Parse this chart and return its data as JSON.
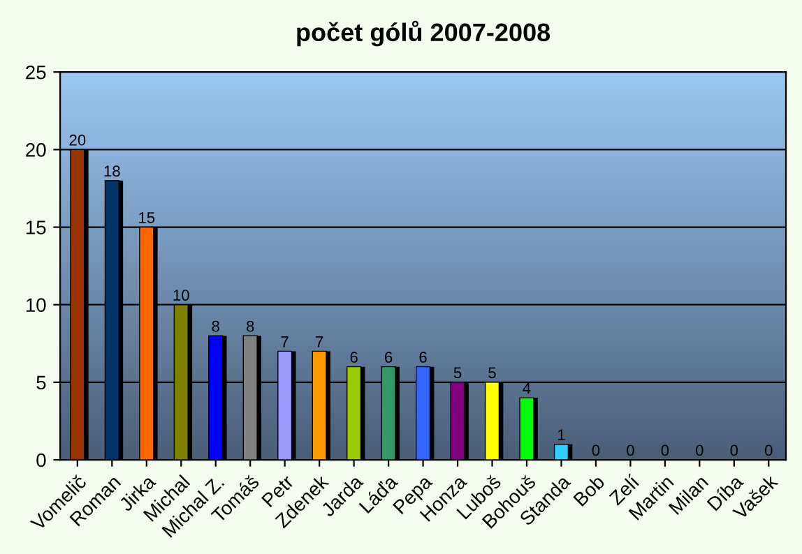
{
  "chart_data": {
    "type": "bar",
    "title": "počet gólů 2007-2008",
    "categories": [
      "Vomelič",
      "Roman",
      "Jirka",
      "Michal",
      "Michal Z.",
      "Tomáš",
      "Petr",
      "Zdenek",
      "Jarda",
      "Láďa",
      "Pepa",
      "Honza",
      "Luboš",
      "Bohouš",
      "Standa",
      "Bob",
      "Zelí",
      "Martin",
      "Milan",
      "Díba",
      "Vašek"
    ],
    "values": [
      20,
      18,
      15,
      10,
      8,
      8,
      7,
      7,
      6,
      6,
      6,
      5,
      5,
      4,
      1,
      0,
      0,
      0,
      0,
      0,
      0
    ],
    "colors": [
      "#993300",
      "#003366",
      "#ff6600",
      "#808000",
      "#0000ff",
      "#808080",
      "#9999ff",
      "#ff9900",
      "#99cc00",
      "#339966",
      "#3366ff",
      "#800080",
      "#ffff00",
      "#00ff00",
      "#33ccff",
      null,
      null,
      null,
      null,
      null,
      null
    ],
    "ylim": [
      0,
      25
    ],
    "yticks": [
      0,
      5,
      10,
      15,
      20,
      25
    ],
    "grid": "y",
    "data_labels": true
  }
}
